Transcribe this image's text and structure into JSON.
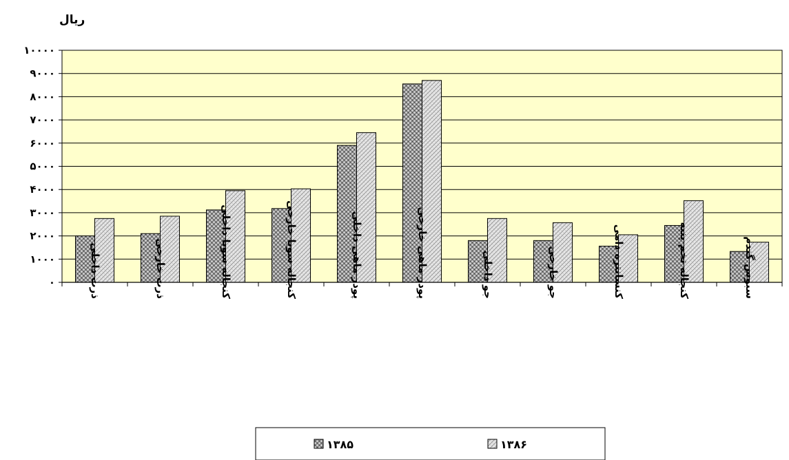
{
  "chart_data": {
    "type": "bar",
    "unit_label": "ریال",
    "categories": [
      "ذرت داخلی",
      "ذرت خارجی",
      "کنجاله سویا داخلی",
      "کنجاله سویا خارجی",
      "پودر ماهی داخلی",
      "پودر ماهی خارجی",
      "جو داخلی",
      "جو خارجی",
      "کنسانتره دامی",
      "کنجاله تخم پنبه",
      "سبوس گندم"
    ],
    "series": [
      {
        "name": "۱۳۸۵",
        "values": [
          2000,
          2100,
          3120,
          3180,
          5900,
          8550,
          1800,
          1800,
          1560,
          2450,
          1330
        ],
        "color": "#7f7f7f",
        "pattern": "dots"
      },
      {
        "name": "۱۳۸۶",
        "values": [
          2750,
          2850,
          3950,
          4030,
          6450,
          8700,
          2750,
          2570,
          2050,
          3520,
          1730
        ],
        "color": "#d9d9d9",
        "pattern": "hatch"
      }
    ],
    "y_ticks": [
      "۰",
      "۱۰۰۰",
      "۲۰۰۰",
      "۳۰۰۰",
      "۴۰۰۰",
      "۵۰۰۰",
      "۶۰۰۰",
      "۷۰۰۰",
      "۸۰۰۰",
      "۹۰۰۰",
      "۱۰۰۰۰"
    ],
    "ylim": [
      0,
      10000
    ],
    "grid": true,
    "plot_background": "#ffffcc",
    "legend_position": "bottom"
  }
}
